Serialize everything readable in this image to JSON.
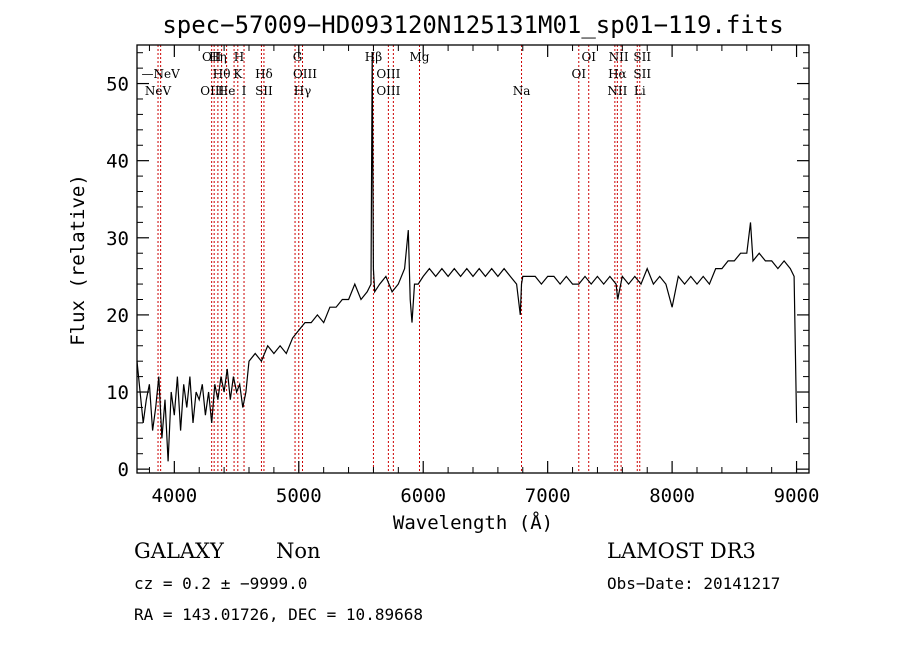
{
  "chart_data": {
    "type": "line",
    "title": "spec−57009−HD093120N125131M01_sp01−119.fits",
    "xlabel": "Wavelength (Å)",
    "ylabel": "Flux (relative)",
    "xlim": [
      3700,
      9100
    ],
    "ylim": [
      -0.5,
      55
    ],
    "xticks": [
      4000,
      5000,
      6000,
      7000,
      8000,
      9000
    ],
    "yticks": [
      0,
      10,
      20,
      30,
      40,
      50
    ],
    "grid": false,
    "series": [
      {
        "color": "#000000",
        "x": [
          3700,
          3725,
          3750,
          3775,
          3800,
          3825,
          3850,
          3875,
          3900,
          3925,
          3950,
          3975,
          4000,
          4025,
          4050,
          4075,
          4100,
          4125,
          4150,
          4175,
          4200,
          4225,
          4250,
          4275,
          4300,
          4325,
          4350,
          4375,
          4400,
          4425,
          4450,
          4475,
          4500,
          4525,
          4550,
          4575,
          4600,
          4650,
          4700,
          4750,
          4800,
          4850,
          4900,
          4950,
          5000,
          5050,
          5100,
          5150,
          5200,
          5250,
          5300,
          5350,
          5400,
          5450,
          5500,
          5550,
          5580,
          5590,
          5600,
          5610,
          5650,
          5700,
          5750,
          5800,
          5850,
          5880,
          5895,
          5910,
          5930,
          5960,
          6000,
          6050,
          6100,
          6150,
          6200,
          6250,
          6300,
          6350,
          6400,
          6450,
          6500,
          6550,
          6600,
          6650,
          6700,
          6750,
          6780,
          6790,
          6800,
          6850,
          6900,
          6950,
          7000,
          7050,
          7100,
          7150,
          7200,
          7250,
          7300,
          7350,
          7400,
          7450,
          7500,
          7550,
          7563,
          7600,
          7650,
          7700,
          7750,
          7800,
          7850,
          7900,
          7950,
          8000,
          8050,
          8100,
          8150,
          8200,
          8250,
          8300,
          8350,
          8400,
          8450,
          8500,
          8550,
          8600,
          8630,
          8650,
          8700,
          8750,
          8800,
          8850,
          8900,
          8950,
          8980,
          9000
        ],
        "y": [
          14,
          10,
          6,
          9,
          11,
          5,
          8,
          12,
          4,
          9,
          1,
          10,
          7,
          12,
          5,
          11,
          8,
          12,
          6,
          10,
          9,
          11,
          7,
          10,
          6,
          11,
          9,
          12,
          10,
          13,
          9,
          12,
          10,
          11,
          8,
          10,
          14,
          15,
          14,
          16,
          15,
          16,
          15,
          17,
          18,
          19,
          19,
          20,
          19,
          21,
          21,
          22,
          22,
          24,
          22,
          23,
          24,
          54,
          26,
          23,
          24,
          25,
          23,
          24,
          26,
          31,
          22,
          19,
          24,
          24,
          25,
          26,
          25,
          26,
          25,
          26,
          25,
          26,
          25,
          26,
          25,
          26,
          25,
          26,
          25,
          24,
          20,
          24,
          25,
          25,
          25,
          24,
          25,
          25,
          24,
          25,
          24,
          24,
          25,
          24,
          25,
          24,
          25,
          24,
          22,
          25,
          24,
          25,
          24,
          26,
          24,
          25,
          24,
          21,
          25,
          24,
          25,
          24,
          25,
          24,
          26,
          26,
          27,
          27,
          28,
          28,
          32,
          27,
          28,
          27,
          27,
          26,
          27,
          26,
          25,
          6
        ]
      }
    ],
    "emission_lines": [
      {
        "label": "NeV",
        "x": 3869,
        "row": 2
      },
      {
        "label": "NeV",
        "x": 3890,
        "row": 1,
        "dash": true
      },
      {
        "label": "OII",
        "x": 4300,
        "row": 0
      },
      {
        "label": "OIII",
        "x": 4305,
        "row": 2
      },
      {
        "label": "Hη",
        "x": 4350,
        "row": 0
      },
      {
        "label": "Hθ",
        "x": 4380,
        "row": 1
      },
      {
        "label": "He",
        "x": 4420,
        "row": 2
      },
      {
        "label": "H",
        "x": 4520,
        "row": 0
      },
      {
        "label": "K",
        "x": 4510,
        "row": 1
      },
      {
        "label": "I",
        "x": 4560,
        "row": 2
      },
      {
        "label": "Hδ",
        "x": 4720,
        "row": 1
      },
      {
        "label": "SII",
        "x": 4720,
        "row": 2
      },
      {
        "label": "G",
        "x": 4990,
        "row": 0
      },
      {
        "label": "OIII",
        "x": 5050,
        "row": 1
      },
      {
        "label": "Hγ",
        "x": 5030,
        "row": 2
      },
      {
        "label": "Hβ",
        "x": 5600,
        "row": 0
      },
      {
        "label": "OIII",
        "x": 5720,
        "row": 1
      },
      {
        "label": "OIII",
        "x": 5720,
        "row": 2
      },
      {
        "label": "Mg",
        "x": 5970,
        "row": 0
      },
      {
        "label": "Na",
        "x": 6790,
        "row": 2
      },
      {
        "label": "OI",
        "x": 7330,
        "row": 0
      },
      {
        "label": "OI",
        "x": 7250,
        "row": 1
      },
      {
        "label": "NII",
        "x": 7570,
        "row": 0
      },
      {
        "label": "Hα",
        "x": 7560,
        "row": 1
      },
      {
        "label": "NII",
        "x": 7560,
        "row": 2
      },
      {
        "label": "SII",
        "x": 7760,
        "row": 0
      },
      {
        "label": "SII",
        "x": 7760,
        "row": 1
      },
      {
        "label": "Li",
        "x": 7740,
        "row": 2
      }
    ],
    "line_markers": [
      3869,
      3890,
      4300,
      4320,
      4350,
      4380,
      4420,
      4480,
      4510,
      4560,
      4700,
      4720,
      4970,
      5000,
      5030,
      5600,
      5720,
      5760,
      5970,
      6790,
      7250,
      7330,
      7540,
      7560,
      7590,
      7720,
      7740
    ],
    "marker_color": "#cc0000"
  },
  "info": {
    "class": "GALAXY",
    "subclass": "Non",
    "cz": "cz = 0.2 ± −9999.0",
    "radec": "RA = 143.01726, DEC =  10.89668",
    "survey": "LAMOST DR3",
    "obsdate": "Obs−Date: 20141217"
  }
}
